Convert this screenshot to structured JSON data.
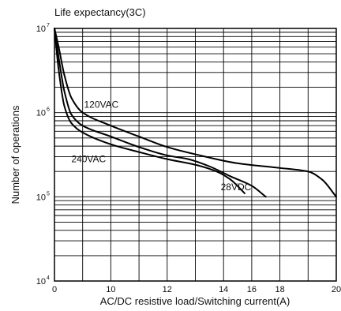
{
  "chart_data": {
    "type": "line",
    "title": "Life expectancy(3C)",
    "xlabel": "AC/DC resistive load/Switching current(A)",
    "ylabel": "Number of operations",
    "xlim": [
      0,
      20
    ],
    "ylim": [
      10000,
      10000000
    ],
    "y_scale": "log",
    "grid": true,
    "x_ticks": [
      {
        "value": 0,
        "label": "0"
      },
      {
        "value": 4,
        "label": "10"
      },
      {
        "value": 8,
        "label": "12"
      },
      {
        "value": 12,
        "label": "14"
      },
      {
        "value": 14,
        "label": "16"
      },
      {
        "value": 16,
        "label": "18"
      },
      {
        "value": 20,
        "label": "20"
      }
    ],
    "y_ticks": [
      {
        "value": 10000000,
        "base": "10",
        "exp": "7"
      },
      {
        "value": 1000000,
        "base": "10",
        "exp": "6"
      },
      {
        "value": 100000,
        "base": "10",
        "exp": "5"
      },
      {
        "value": 10000,
        "base": "10",
        "exp": "4"
      }
    ],
    "x_gridlines": [
      0,
      2,
      4,
      6,
      8,
      10,
      12,
      14,
      16,
      18,
      20
    ],
    "series": [
      {
        "name": "120VAC",
        "x": [
          0,
          0.3,
          0.7,
          1.2,
          2,
          4,
          6,
          8,
          10,
          13,
          16,
          18,
          19,
          20
        ],
        "y": [
          10000000,
          6000000,
          2800000,
          1500000,
          1000000,
          700000,
          520000,
          390000,
          320000,
          250000,
          220000,
          200000,
          160000,
          100000
        ]
      },
      {
        "name": "240VAC",
        "x": [
          0,
          0.3,
          0.7,
          1.2,
          2,
          4,
          6,
          8,
          9.5,
          11,
          12.5,
          14,
          15
        ],
        "y": [
          10000000,
          4500000,
          1800000,
          950000,
          700000,
          520000,
          390000,
          310000,
          280000,
          230000,
          175000,
          135000,
          100000
        ]
      },
      {
        "name": "28VDC",
        "x": [
          0,
          0.3,
          0.7,
          1.2,
          2,
          4,
          6,
          8,
          10,
          11.5,
          12.5,
          13.5
        ],
        "y": [
          10000000,
          3200000,
          1200000,
          750000,
          580000,
          420000,
          340000,
          280000,
          240000,
          200000,
          160000,
          110000
        ]
      }
    ],
    "labels": [
      {
        "series": "120VAC",
        "text": "120VAC",
        "x": 2.1,
        "y": 1250000
      },
      {
        "series": "240VAC",
        "text": "240VAC",
        "x": 1.2,
        "y": 280000
      },
      {
        "series": "28VDC",
        "text": "28VDC",
        "x": 11.8,
        "y": 130000
      }
    ]
  }
}
